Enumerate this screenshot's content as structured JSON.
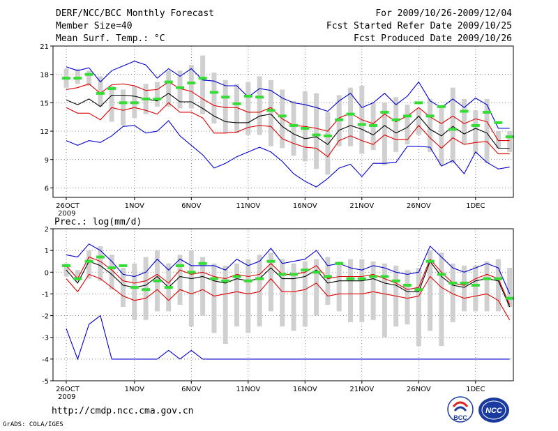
{
  "header": {
    "title": "DERF/NCC/BCC Monthly Forecast",
    "member_size": "Member Size=40",
    "variable": "Mean Surf. Temp.: °C",
    "period": "For 2009/10/26-2009/12/04",
    "started": "Fcst Started Refer Date 2009/10/25",
    "produced": "Fcst Produced Date 2009/10/26"
  },
  "footer": {
    "url": "http://cmdp.ncc.cma.gov.cn",
    "credit": "GrADS: COLA/IGES",
    "logo_left_text": "BCC",
    "logo_right_text": "NCC"
  },
  "colors": {
    "max_min": "#0000cc",
    "percentile": "#dd0000",
    "mean": "#000000",
    "box": "#d0d0d0",
    "ensemble_mark": "#33dd33"
  },
  "chart_data": [
    {
      "type": "line",
      "title": "Mean Surf. Temp.: °C",
      "ylim": [
        5,
        21
      ],
      "yticks": [
        6,
        9,
        12,
        15,
        18,
        21
      ],
      "xtick_labels": [
        "26OCT",
        "1NOV",
        "6NOV",
        "11NOV",
        "16NOV",
        "21NOV",
        "26NOV",
        "1DEC"
      ],
      "xtick_index": [
        0,
        6,
        11,
        16,
        21,
        26,
        31,
        36
      ],
      "year_label": "2009",
      "box_low": [
        16.6,
        17.0,
        16.8,
        14.6,
        13.0,
        12.6,
        13.4,
        13.8,
        14.6,
        14.6,
        14.4,
        14.4,
        13.8,
        12.8,
        11.8,
        11.8,
        11.6,
        11.6,
        10.4,
        10.2,
        9.4,
        8.8,
        8.0,
        7.4,
        10.4,
        10.4,
        9.6,
        10.0,
        8.4,
        9.8,
        10.6,
        11.6,
        9.8,
        8.4,
        8.6,
        10.6,
        9.6,
        8.6,
        10.2,
        9.8
      ],
      "box_high": [
        18.6,
        18.6,
        18.4,
        17.8,
        16.8,
        16.4,
        16.8,
        17.0,
        17.2,
        18.4,
        18.4,
        19.0,
        20.0,
        18.2,
        17.4,
        17.0,
        17.2,
        17.8,
        17.4,
        16.4,
        15.2,
        16.2,
        16.0,
        14.0,
        15.8,
        16.6,
        16.8,
        15.0,
        15.0,
        15.6,
        14.8,
        14.4,
        15.4,
        14.6,
        16.6,
        15.4,
        14.2,
        15.4,
        12.0,
        12.0
      ],
      "series": [
        {
          "name": "max",
          "values": [
            18.8,
            18.4,
            18.7,
            17.2,
            18.4,
            18.9,
            19.4,
            19.0,
            17.6,
            18.6,
            17.8,
            18.6,
            17.4,
            17.3,
            16.8,
            16.8,
            15.6,
            16.5,
            16.3,
            15.5,
            15.0,
            14.8,
            14.5,
            14.1,
            15.2,
            16.0,
            14.5,
            15.0,
            16.0,
            14.8,
            15.7,
            17.2,
            15.2,
            14.5,
            15.4,
            14.5,
            15.5,
            14.8,
            12.3,
            12.3
          ]
        },
        {
          "name": "p90",
          "values": [
            16.4,
            16.6,
            17.0,
            16.0,
            16.9,
            17.0,
            16.8,
            16.3,
            16.4,
            17.2,
            16.5,
            16.2,
            15.4,
            14.7,
            14.5,
            14.5,
            14.0,
            14.0,
            14.5,
            13.3,
            12.6,
            12.5,
            12.3,
            12.0,
            13.4,
            13.9,
            13.2,
            12.8,
            13.8,
            13.0,
            13.6,
            14.5,
            13.5,
            12.8,
            13.6,
            12.8,
            13.3,
            13.0,
            11.0,
            11.0
          ]
        },
        {
          "name": "mean",
          "values": [
            15.3,
            14.8,
            15.4,
            14.6,
            15.8,
            15.8,
            15.7,
            15.4,
            15.2,
            16.0,
            15.1,
            15.1,
            14.4,
            13.6,
            13.0,
            12.9,
            12.9,
            13.6,
            13.8,
            12.5,
            11.7,
            11.2,
            11.4,
            10.6,
            12.1,
            12.6,
            12.2,
            11.6,
            12.6,
            11.8,
            12.4,
            13.6,
            12.2,
            11.5,
            12.5,
            11.7,
            12.3,
            11.8,
            10.2,
            10.2
          ]
        },
        {
          "name": "p10",
          "values": [
            14.5,
            13.9,
            13.9,
            13.2,
            14.5,
            14.2,
            14.5,
            14.2,
            13.8,
            15.0,
            14.0,
            14.0,
            13.4,
            11.8,
            11.8,
            11.9,
            12.4,
            12.6,
            12.5,
            11.2,
            10.7,
            10.3,
            10.2,
            9.3,
            11.0,
            11.5,
            11.0,
            10.6,
            11.6,
            11.1,
            11.1,
            12.6,
            11.3,
            10.2,
            11.3,
            10.6,
            10.8,
            10.9,
            9.6,
            9.6
          ]
        },
        {
          "name": "min",
          "values": [
            11.0,
            10.5,
            11.0,
            10.8,
            11.5,
            12.5,
            12.6,
            11.8,
            12.0,
            13.1,
            11.5,
            10.5,
            9.5,
            8.1,
            8.6,
            9.3,
            9.8,
            10.3,
            9.8,
            8.8,
            7.5,
            6.7,
            6.1,
            7.0,
            8.1,
            8.5,
            7.2,
            8.6,
            8.6,
            8.7,
            10.4,
            10.4,
            10.3,
            8.3,
            8.9,
            7.5,
            9.8,
            8.7,
            8.0,
            8.2
          ]
        }
      ],
      "ensemble_mean": [
        17.6,
        17.6,
        18.0,
        16.0,
        16.5,
        15.0,
        15.0,
        15.4,
        15.4,
        17.2,
        16.6,
        17.1,
        17.6,
        16.1,
        15.6,
        14.9,
        15.7,
        15.6,
        14.2,
        13.6,
        12.6,
        12.3,
        11.6,
        11.5,
        13.2,
        13.8,
        12.7,
        12.6,
        14.0,
        13.2,
        13.6,
        15.0,
        13.6,
        14.6,
        12.2,
        14.1,
        12.6,
        14.0,
        12.9,
        11.4
      ]
    },
    {
      "type": "line",
      "title": "Prec.: log(mm/d)",
      "ylim": [
        -5,
        2
      ],
      "yticks": [
        -5,
        -4,
        -3,
        -2,
        -1,
        0,
        1,
        2
      ],
      "xtick_labels": [
        "26OCT",
        "1NOV",
        "6NOV",
        "11NOV",
        "16NOV",
        "21NOV",
        "26NOV",
        "1DEC"
      ],
      "xtick_index": [
        0,
        6,
        11,
        16,
        21,
        26,
        31,
        36
      ],
      "year_label": "2009",
      "box_low": [
        -0.2,
        -0.4,
        -0.3,
        -0.4,
        -0.8,
        -1.6,
        -2.2,
        -2.2,
        -1.8,
        -1.8,
        -1.5,
        -2.5,
        -2.0,
        -2.8,
        -3.3,
        -2.5,
        -2.8,
        -2.5,
        -1.8,
        -2.5,
        -2.7,
        -2.5,
        -2.0,
        -1.5,
        -1.8,
        -2.3,
        -2.3,
        -2.2,
        -3.0,
        -2.5,
        -2.4,
        -3.4,
        -2.7,
        -3.4,
        -2.3,
        -1.8,
        -1.8,
        -1.8,
        -1.8,
        -1.6
      ],
      "box_high": [
        0.4,
        0.1,
        1.0,
        1.2,
        0.8,
        0.2,
        0.4,
        0.7,
        1.0,
        0.4,
        0.8,
        1.0,
        0.7,
        0.4,
        0.3,
        0.4,
        0.6,
        0.8,
        0.9,
        0.6,
        0.4,
        0.5,
        0.6,
        0.7,
        0.5,
        0.6,
        0.6,
        0.5,
        0.4,
        0.3,
        0.1,
        0.2,
        1.0,
        0.9,
        0.4,
        0.3,
        0.3,
        0.5,
        0.6,
        0.2
      ],
      "series": [
        {
          "name": "max",
          "values": [
            0.8,
            0.7,
            1.3,
            1.0,
            0.5,
            -0.1,
            -0.2,
            0.0,
            0.6,
            0.1,
            0.6,
            0.3,
            0.3,
            0.3,
            0.1,
            0.6,
            0.3,
            0.5,
            1.1,
            0.4,
            0.5,
            0.6,
            1.0,
            0.3,
            0.4,
            0.2,
            0.1,
            0.3,
            0.2,
            0.0,
            -0.1,
            0.0,
            1.2,
            0.7,
            0.2,
            0.0,
            0.2,
            0.4,
            0.2,
            -1.0
          ]
        },
        {
          "name": "p90",
          "values": [
            0.3,
            -0.3,
            0.7,
            0.5,
            0.1,
            -0.4,
            -0.5,
            -0.4,
            -0.1,
            -0.5,
            0.1,
            -0.1,
            0.0,
            -0.2,
            -0.3,
            -0.1,
            -0.2,
            -0.1,
            0.4,
            -0.1,
            -0.1,
            0.0,
            0.3,
            -0.3,
            -0.2,
            -0.2,
            -0.2,
            -0.1,
            -0.3,
            -0.5,
            -0.8,
            -0.7,
            0.6,
            0.0,
            -0.5,
            -0.6,
            -0.3,
            -0.1,
            -0.3,
            -1.5
          ]
        },
        {
          "name": "mean",
          "values": [
            0.1,
            -0.5,
            0.5,
            0.3,
            -0.1,
            -0.6,
            -0.7,
            -0.6,
            -0.2,
            -0.7,
            -0.2,
            -0.3,
            -0.2,
            -0.4,
            -0.5,
            -0.3,
            -0.4,
            -0.3,
            0.2,
            -0.3,
            -0.3,
            -0.2,
            0.1,
            -0.5,
            -0.4,
            -0.4,
            -0.4,
            -0.3,
            -0.5,
            -0.6,
            -0.9,
            -0.9,
            0.5,
            -0.2,
            -0.6,
            -0.7,
            -0.4,
            -0.3,
            -0.4,
            -1.6
          ]
        },
        {
          "name": "p10",
          "values": [
            -0.3,
            -0.9,
            -0.1,
            -0.3,
            -0.7,
            -1.1,
            -1.3,
            -1.2,
            -0.8,
            -1.3,
            -0.8,
            -1.0,
            -0.8,
            -1.1,
            -1.0,
            -0.9,
            -1.0,
            -0.9,
            -0.3,
            -0.9,
            -0.9,
            -0.8,
            -0.5,
            -1.1,
            -1.0,
            -1.0,
            -1.0,
            -0.9,
            -1.0,
            -1.1,
            -1.2,
            -1.1,
            -0.2,
            -0.7,
            -1.0,
            -1.2,
            -1.1,
            -1.0,
            -1.3,
            -2.2
          ]
        },
        {
          "name": "min",
          "values": [
            -2.6,
            -4.0,
            -2.4,
            -2.0,
            -4.0,
            -4.0,
            -4.0,
            -4.0,
            -4.0,
            -3.6,
            -4.0,
            -3.6,
            -4.0,
            -4.0,
            -4.0,
            -4.0,
            -4.0,
            -4.0,
            -4.0,
            -4.0,
            -4.0,
            -4.0,
            -4.0,
            -4.0,
            -4.0,
            -4.0,
            -4.0,
            -4.0,
            -4.0,
            -4.0,
            -4.0,
            -4.0,
            -4.0,
            -4.0,
            -4.0,
            -4.0,
            -4.0,
            -4.0,
            -4.0,
            -4.0
          ]
        }
      ],
      "ensemble_mean": [
        0.3,
        -0.3,
        0.5,
        0.7,
        0.2,
        0.3,
        -0.7,
        -0.8,
        -0.4,
        -0.7,
        0.3,
        0.0,
        0.4,
        -0.3,
        -0.4,
        -0.2,
        -0.4,
        -0.3,
        0.5,
        -0.1,
        -0.1,
        0.1,
        0.0,
        -0.2,
        0.4,
        -0.3,
        -0.3,
        -0.2,
        -0.2,
        -0.4,
        -0.6,
        -0.8,
        0.5,
        -0.1,
        -0.5,
        -0.5,
        -0.6,
        -0.3,
        -0.3,
        -1.2
      ]
    }
  ]
}
